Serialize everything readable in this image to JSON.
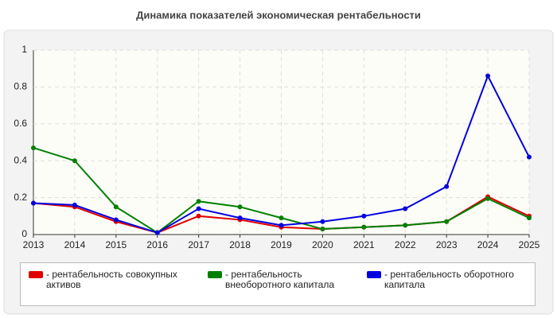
{
  "chart_data": {
    "type": "line",
    "title": "Динамика показателей экономическая рентабельности",
    "categories": [
      "2013",
      "2014",
      "2015",
      "2016",
      "2017",
      "2018",
      "2019",
      "2020",
      "2021",
      "2022",
      "2023",
      "2024",
      "2025"
    ],
    "series": [
      {
        "name": "- рентабельность совокупных активов",
        "color": "#e00000",
        "values": [
          0.17,
          0.15,
          0.07,
          0.01,
          0.1,
          0.08,
          0.04,
          0.03,
          0.04,
          0.05,
          0.07,
          0.205,
          0.1
        ]
      },
      {
        "name": "- рентабельность внеоборотного капитала",
        "color": "#008000",
        "values": [
          0.47,
          0.4,
          0.15,
          0.01,
          0.18,
          0.15,
          0.09,
          0.03,
          0.04,
          0.05,
          0.07,
          0.195,
          0.09
        ]
      },
      {
        "name": "- рентабельность оборотного капитала",
        "color": "#0000e0",
        "values": [
          0.17,
          0.16,
          0.08,
          0.01,
          0.14,
          0.09,
          0.05,
          0.07,
          0.1,
          0.14,
          0.26,
          0.86,
          0.42
        ]
      }
    ],
    "ylim": [
      0,
      1
    ],
    "yticks": [
      0,
      0.2,
      0.4,
      0.6,
      0.8,
      1
    ],
    "grid": true
  }
}
